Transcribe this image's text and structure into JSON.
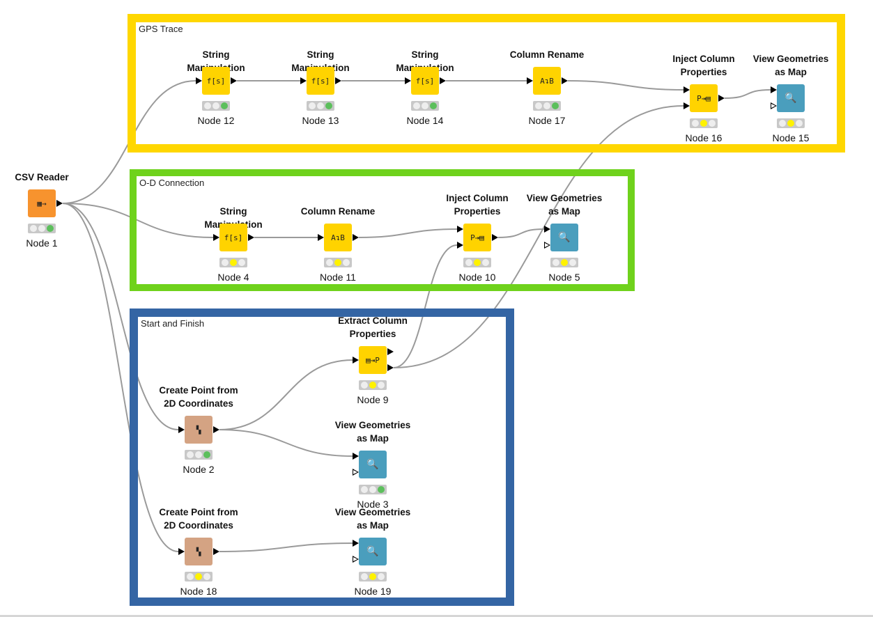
{
  "annotations": [
    {
      "id": "gps",
      "label": "GPS Trace",
      "color": "#FFD700"
    },
    {
      "id": "od",
      "label": "O-D Connection",
      "color": "#6FD21C"
    },
    {
      "id": "sf",
      "label": "Start and Finish",
      "color": "#3465A4"
    }
  ],
  "colors": {
    "manipulator": "#FFD300",
    "source": "#F7932E",
    "geo": "#D4A383",
    "view": "#4A9EBD",
    "status_green": "#5CBF5C",
    "status_yellow": "#FFF200",
    "wire": "#9a9a9a"
  },
  "nodes": [
    {
      "id": "n1",
      "title": "CSV Reader",
      "name": "Node 1",
      "kind": "source",
      "icon": "table-arrow-icon",
      "glyph": "▦→",
      "status": "green"
    },
    {
      "id": "n12",
      "title": "String Manipulation",
      "name": "Node 12",
      "kind": "manipulator",
      "icon": "string-function-icon",
      "glyph": "f[s]",
      "status": "green"
    },
    {
      "id": "n13",
      "title": "String Manipulation",
      "name": "Node 13",
      "kind": "manipulator",
      "icon": "string-function-icon",
      "glyph": "f[s]",
      "status": "green"
    },
    {
      "id": "n14",
      "title": "String Manipulation",
      "name": "Node 14",
      "kind": "manipulator",
      "icon": "string-function-icon",
      "glyph": "f[s]",
      "status": "green"
    },
    {
      "id": "n17",
      "title": "Column Rename",
      "name": "Node 17",
      "kind": "manipulator",
      "icon": "column-rename-icon",
      "glyph": "A↴B",
      "status": "green"
    },
    {
      "id": "n16",
      "title": "Inject Column\nProperties",
      "name": "Node 16",
      "kind": "manipulator",
      "icon": "inject-properties-icon",
      "glyph": "P⇥▤",
      "status": "yellow"
    },
    {
      "id": "n15",
      "title": "View Geometries\nas Map",
      "name": "Node 15",
      "kind": "view",
      "icon": "map-view-icon",
      "glyph": "🔍",
      "status": "yellow"
    },
    {
      "id": "n4",
      "title": "String Manipulation",
      "name": "Node 4",
      "kind": "manipulator",
      "icon": "string-function-icon",
      "glyph": "f[s]",
      "status": "yellow"
    },
    {
      "id": "n11",
      "title": "Column Rename",
      "name": "Node 11",
      "kind": "manipulator",
      "icon": "column-rename-icon",
      "glyph": "A↴B",
      "status": "yellow"
    },
    {
      "id": "n10",
      "title": "Inject Column\nProperties",
      "name": "Node 10",
      "kind": "manipulator",
      "icon": "inject-properties-icon",
      "glyph": "P⇥▤",
      "status": "yellow"
    },
    {
      "id": "n5",
      "title": "View Geometries\nas Map",
      "name": "Node 5",
      "kind": "view",
      "icon": "map-view-icon",
      "glyph": "🔍",
      "status": "yellow"
    },
    {
      "id": "n9",
      "title": "Extract Column\nProperties",
      "name": "Node 9",
      "kind": "manipulator",
      "icon": "extract-properties-icon",
      "glyph": "▤⇥P",
      "status": "yellow"
    },
    {
      "id": "n2",
      "title": "Create Point from\n2D Coordinates",
      "name": "Node 2",
      "kind": "geo",
      "icon": "geo-point-icon",
      "glyph": "▚",
      "status": "green"
    },
    {
      "id": "n3",
      "title": "View Geometries\nas Map",
      "name": "Node 3",
      "kind": "view",
      "icon": "map-view-icon",
      "glyph": "🔍",
      "status": "green"
    },
    {
      "id": "n18",
      "title": "Create Point from\n2D Coordinates",
      "name": "Node 18",
      "kind": "geo",
      "icon": "geo-point-icon",
      "glyph": "▚",
      "status": "yellow"
    },
    {
      "id": "n19",
      "title": "View Geometries\nas Map",
      "name": "Node 19",
      "kind": "view",
      "icon": "map-view-icon",
      "glyph": "🔍",
      "status": "yellow"
    }
  ],
  "connections": [
    {
      "from": "n1",
      "to": "n12"
    },
    {
      "from": "n1",
      "to": "n4"
    },
    {
      "from": "n1",
      "to": "n2"
    },
    {
      "from": "n1",
      "to": "n18"
    },
    {
      "from": "n12",
      "to": "n13"
    },
    {
      "from": "n13",
      "to": "n14"
    },
    {
      "from": "n14",
      "to": "n17"
    },
    {
      "from": "n17",
      "to": "n16"
    },
    {
      "from": "n16",
      "to": "n15"
    },
    {
      "from": "n4",
      "to": "n11"
    },
    {
      "from": "n11",
      "to": "n10"
    },
    {
      "from": "n10",
      "to": "n5"
    },
    {
      "from": "n2",
      "to": "n9"
    },
    {
      "from": "n2",
      "to": "n3"
    },
    {
      "from": "n9",
      "to": "n10",
      "from_port": 2,
      "to_port": 2
    },
    {
      "from": "n9",
      "to": "n16",
      "from_port": 2,
      "to_port": 2
    },
    {
      "from": "n18",
      "to": "n19"
    }
  ]
}
